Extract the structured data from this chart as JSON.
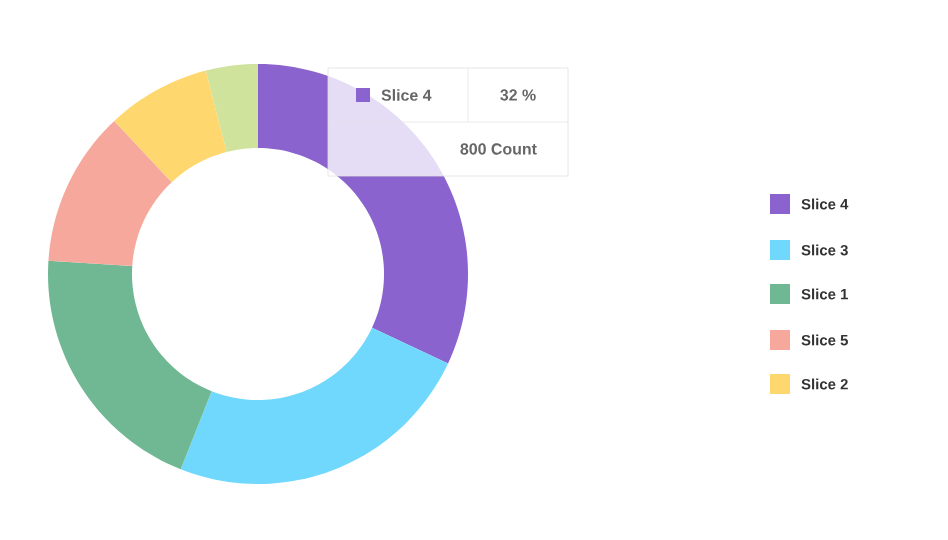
{
  "chart_data": {
    "type": "donut",
    "categories": [
      "Slice 4",
      "Slice 3",
      "Slice 1",
      "Slice 5",
      "Slice 2",
      null
    ],
    "values": [
      32,
      24,
      20,
      12,
      8,
      4
    ],
    "colors": [
      "#8a63cf",
      "#6fd8fc",
      "#6fb893",
      "#f6a89c",
      "#fed86e",
      "#cfe39c"
    ],
    "annotations": [
      "32 %",
      "800 Count"
    ],
    "legend": "right"
  }
}
